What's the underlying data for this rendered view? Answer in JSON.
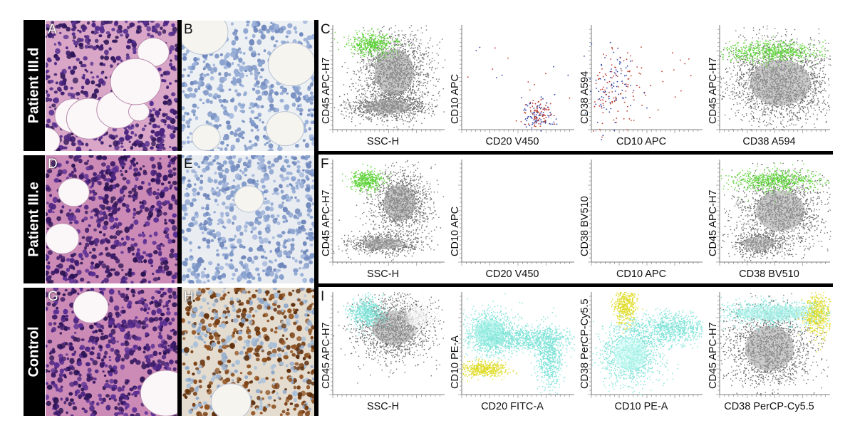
{
  "figure": {
    "rows": [
      {
        "label": "Patient III.d",
        "panel_letters": [
          "A",
          "B",
          "C"
        ]
      },
      {
        "label": "Patient III.e",
        "panel_letters": [
          "D",
          "E",
          "F"
        ]
      },
      {
        "label": "Control",
        "panel_letters": [
          "G",
          "H",
          "I"
        ]
      }
    ],
    "flow_rows": [
      {
        "plots": [
          {
            "x_label": "SSC-H",
            "y_label": "CD45  APC-H7",
            "kind": "ssc"
          },
          {
            "x_label": "CD20  V450",
            "y_label": "CD10  APC",
            "kind": "cd20_sparse"
          },
          {
            "x_label": "CD10  APC",
            "y_label": "CD38  A594",
            "kind": "cd10_sparse"
          },
          {
            "x_label": "CD38  A594",
            "y_label": "CD45  APC-H7",
            "kind": "cd38"
          }
        ]
      },
      {
        "plots": [
          {
            "x_label": "SSC-H",
            "y_label": "CD45  APC-H7",
            "kind": "ssc2"
          },
          {
            "x_label": "CD20  V450",
            "y_label": "CD10  APC",
            "kind": "empty"
          },
          {
            "x_label": "CD10  APC",
            "y_label": "CD38  BV510",
            "kind": "empty"
          },
          {
            "x_label": "CD38  BV510",
            "y_label": "CD45  APC-H7",
            "kind": "cd38_2"
          }
        ]
      },
      {
        "plots": [
          {
            "x_label": "SSC-H",
            "y_label": "CD45  APC-H7",
            "kind": "ssc3"
          },
          {
            "x_label": "CD20  FITC-A",
            "y_label": "CD10  PE-A",
            "kind": "cd20_ctrl"
          },
          {
            "x_label": "CD10  PE-A",
            "y_label": "CD38  PerCP-Cy5.5",
            "kind": "cd10_ctrl"
          },
          {
            "x_label": "CD38  PerCP-Cy5.5",
            "y_label": "CD45  APC-H7",
            "kind": "cd38_ctrl"
          }
        ]
      }
    ],
    "colors": {
      "he_stain": "#c8699e",
      "ihc_blue": "#8aa2cf",
      "ihc_brown": "#7a4014",
      "gate_green": "#5fd33a",
      "gate_cyan": "#7fe3d8",
      "gate_yellow": "#e0dc2a",
      "dot_red": "#c0392b",
      "dot_blue": "#2940a8"
    }
  }
}
